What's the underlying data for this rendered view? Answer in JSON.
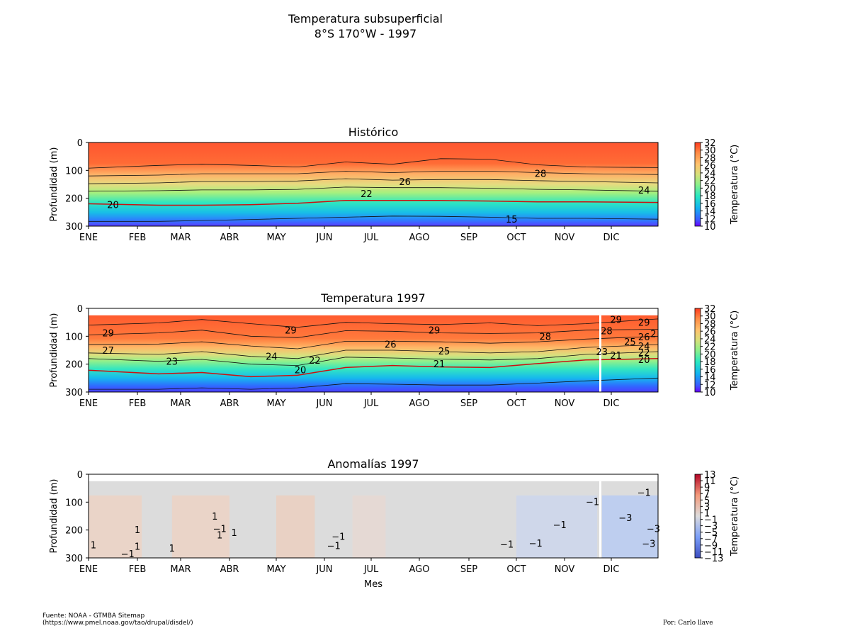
{
  "figure": {
    "title_line1": "Temperatura subsuperficial",
    "title_line2": "8°S 170°W - 1997",
    "source_line1": "Fuente: NOAA - GTMBA Sitemap",
    "source_line2": "(https://www.pmel.noaa.gov/tao/drupal/disdel/)",
    "credit": "Por: Carlo llave"
  },
  "chart_data": [
    {
      "type": "heatmap",
      "title": "Histórico",
      "ylabel": "Profundidad (m)",
      "xlabel": "",
      "x_categories": [
        "ENE",
        "FEB",
        "MAR",
        "ABR",
        "MAY",
        "JUN",
        "JUL",
        "AGO",
        "SEP",
        "OCT",
        "NOV",
        "DIC"
      ],
      "ylim": [
        300,
        0
      ],
      "yticks": [
        0,
        100,
        200,
        300
      ],
      "colorbar": {
        "label": "Temperatura (°C)",
        "range": [
          10,
          32
        ],
        "ticks": [
          32,
          30,
          28,
          26,
          24,
          22,
          20,
          18,
          16,
          14,
          12,
          10
        ]
      },
      "contour_labels": [
        {
          "text": "28",
          "month": 9.5,
          "depth": 110
        },
        {
          "text": "26",
          "month": 6.7,
          "depth": 140
        },
        {
          "text": "24",
          "month": 11.7,
          "depth": 170
        },
        {
          "text": "22",
          "month": 5.9,
          "depth": 183
        },
        {
          "text": "20",
          "month": 0.5,
          "depth": 222
        },
        {
          "text": "15",
          "month": 8.9,
          "depth": 275
        }
      ],
      "isotherms": [
        {
          "temp": 28,
          "depth": [
            92,
            82,
            78,
            82,
            88,
            70,
            78,
            58,
            60,
            80,
            88,
            90
          ]
        },
        {
          "temp": 26,
          "depth": [
            120,
            117,
            112,
            112,
            112,
            103,
            108,
            103,
            103,
            108,
            112,
            115
          ]
        },
        {
          "temp": 24,
          "depth": [
            148,
            145,
            140,
            140,
            138,
            130,
            135,
            133,
            133,
            137,
            140,
            145
          ]
        },
        {
          "temp": 22,
          "depth": [
            175,
            173,
            170,
            170,
            168,
            160,
            162,
            162,
            164,
            168,
            170,
            175
          ]
        },
        {
          "temp": 20,
          "depth": [
            220,
            225,
            225,
            223,
            218,
            208,
            208,
            208,
            210,
            213,
            213,
            215
          ]
        },
        {
          "temp": 15,
          "depth": [
            283,
            283,
            280,
            276,
            272,
            268,
            264,
            265,
            268,
            272,
            272,
            275
          ]
        }
      ]
    },
    {
      "type": "heatmap",
      "title": "Temperatura 1997",
      "ylabel": "Profundidad (m)",
      "xlabel": "",
      "x_categories": [
        "ENE",
        "FEB",
        "MAR",
        "ABR",
        "MAY",
        "JUN",
        "JUL",
        "AGO",
        "SEP",
        "OCT",
        "NOV",
        "DIC"
      ],
      "ylim": [
        300,
        0
      ],
      "yticks": [
        0,
        100,
        200,
        300
      ],
      "colorbar": {
        "label": "Temperatura (°C)",
        "range": [
          10,
          32
        ],
        "ticks": [
          32,
          30,
          28,
          26,
          24,
          22,
          20,
          18,
          16,
          14,
          12,
          10
        ]
      },
      "contour_labels": [
        {
          "text": "29",
          "month": 0.4,
          "depth": 88
        },
        {
          "text": "29",
          "month": 4.3,
          "depth": 78
        },
        {
          "text": "29",
          "month": 7.3,
          "depth": 78
        },
        {
          "text": "28",
          "month": 9.6,
          "depth": 100
        },
        {
          "text": "28",
          "month": 10.9,
          "depth": 80
        },
        {
          "text": "29",
          "month": 11.1,
          "depth": 40
        },
        {
          "text": "29",
          "month": 11.7,
          "depth": 50
        },
        {
          "text": "2",
          "month": 11.9,
          "depth": 90
        },
        {
          "text": "27",
          "month": 0.4,
          "depth": 150
        },
        {
          "text": "26",
          "month": 6.4,
          "depth": 128
        },
        {
          "text": "25",
          "month": 7.5,
          "depth": 152
        },
        {
          "text": "25",
          "month": 11.4,
          "depth": 120
        },
        {
          "text": "26",
          "month": 11.7,
          "depth": 102
        },
        {
          "text": "24",
          "month": 3.9,
          "depth": 172
        },
        {
          "text": "24",
          "month": 11.7,
          "depth": 135
        },
        {
          "text": "23",
          "month": 1.8,
          "depth": 190
        },
        {
          "text": "23",
          "month": 10.8,
          "depth": 155
        },
        {
          "text": "22",
          "month": 4.8,
          "depth": 185
        },
        {
          "text": "22",
          "month": 11.7,
          "depth": 158
        },
        {
          "text": "21",
          "month": 7.4,
          "depth": 198
        },
        {
          "text": "21",
          "month": 11.1,
          "depth": 168
        },
        {
          "text": "20",
          "month": 4.5,
          "depth": 220
        },
        {
          "text": "20",
          "month": 11.7,
          "depth": 183
        }
      ],
      "isotherms": [
        {
          "temp": 29,
          "depth": [
            60,
            52,
            40,
            55,
            68,
            50,
            55,
            58,
            52,
            62,
            55,
            38
          ]
        },
        {
          "temp": 28,
          "depth": [
            95,
            88,
            78,
            100,
            105,
            80,
            82,
            88,
            90,
            88,
            78,
            75
          ]
        },
        {
          "temp": 26,
          "depth": [
            130,
            128,
            120,
            135,
            145,
            118,
            118,
            120,
            125,
            120,
            110,
            100
          ]
        },
        {
          "temp": 24,
          "depth": [
            160,
            165,
            155,
            172,
            180,
            150,
            150,
            155,
            160,
            155,
            140,
            130
          ]
        },
        {
          "temp": 22,
          "depth": [
            180,
            190,
            183,
            200,
            205,
            175,
            178,
            182,
            185,
            180,
            165,
            155
          ]
        },
        {
          "temp": 20,
          "depth": [
            222,
            235,
            230,
            245,
            240,
            212,
            205,
            210,
            212,
            198,
            185,
            180
          ]
        },
        {
          "temp": 14,
          "depth": [
            290,
            290,
            285,
            290,
            285,
            270,
            272,
            275,
            275,
            268,
            260,
            250
          ]
        }
      ]
    },
    {
      "type": "heatmap",
      "title": "Anomalías 1997",
      "ylabel": "Profundidad (m)",
      "xlabel": "Mes",
      "x_categories": [
        "ENE",
        "FEB",
        "MAR",
        "ABR",
        "MAY",
        "JUN",
        "JUL",
        "AGO",
        "SEP",
        "OCT",
        "NOV",
        "DIC"
      ],
      "ylim": [
        300,
        0
      ],
      "yticks": [
        0,
        100,
        200,
        300
      ],
      "colorbar": {
        "label": "Temperatura (°C)",
        "range": [
          -13,
          13
        ],
        "ticks": [
          13,
          11,
          9,
          7,
          5,
          3,
          1,
          -1,
          -3,
          -5,
          -7,
          -9,
          -11,
          -13
        ]
      },
      "contour_labels": [
        {
          "text": "1",
          "month": 0.1,
          "depth": 253
        },
        {
          "text": "1",
          "month": 1.0,
          "depth": 198
        },
        {
          "text": "1",
          "month": 1.0,
          "depth": 258
        },
        {
          "text": "−1",
          "month": 0.8,
          "depth": 285
        },
        {
          "text": "1",
          "month": 1.8,
          "depth": 265
        },
        {
          "text": "1",
          "month": 2.7,
          "depth": 150
        },
        {
          "text": "1",
          "month": 2.8,
          "depth": 218
        },
        {
          "text": "−1",
          "month": 2.8,
          "depth": 195
        },
        {
          "text": "1",
          "month": 3.1,
          "depth": 208
        },
        {
          "text": "−1",
          "month": 5.3,
          "depth": 222
        },
        {
          "text": "−1",
          "month": 5.2,
          "depth": 255
        },
        {
          "text": "−1",
          "month": 8.8,
          "depth": 250
        },
        {
          "text": "−1",
          "month": 9.4,
          "depth": 247
        },
        {
          "text": "−1",
          "month": 9.9,
          "depth": 180
        },
        {
          "text": "−1",
          "month": 10.6,
          "depth": 98
        },
        {
          "text": "−1",
          "month": 11.7,
          "depth": 65
        },
        {
          "text": "−3",
          "month": 11.3,
          "depth": 155
        },
        {
          "text": "−3",
          "month": 11.9,
          "depth": 195
        },
        {
          "text": "−3",
          "month": 11.8,
          "depth": 248
        }
      ]
    }
  ]
}
